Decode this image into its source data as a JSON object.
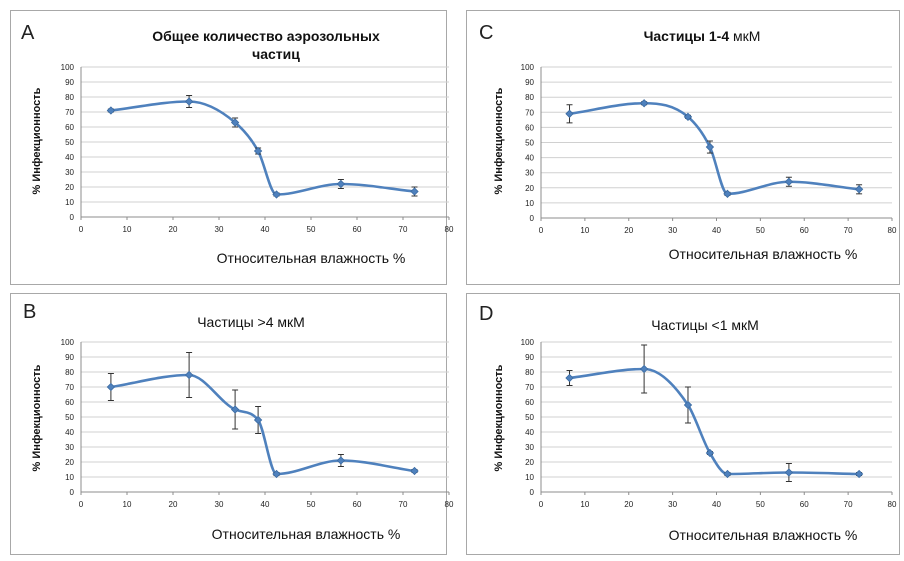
{
  "chart_data": [
    {
      "type": "line",
      "panel_letter": "A",
      "title": "Общее количество аэрозольных частиц",
      "xlabel": "Относительная влажность %",
      "ylabel": "% Инфекционность",
      "xlim": [
        0,
        80
      ],
      "ylim": [
        0,
        100
      ],
      "x_ticks": [
        0,
        10,
        20,
        30,
        40,
        50,
        60,
        70,
        80
      ],
      "y_ticks": [
        0,
        10,
        20,
        30,
        40,
        50,
        60,
        70,
        80,
        90,
        100
      ],
      "grid": true,
      "series": [
        {
          "x": [
            6.5,
            23.5,
            33.5,
            38.5,
            42.5,
            56.5,
            72.5
          ],
          "y": [
            71,
            77,
            63,
            44,
            15,
            22,
            17
          ],
          "err": [
            1,
            4,
            3,
            2,
            1,
            3,
            3
          ]
        }
      ]
    },
    {
      "type": "line",
      "panel_letter": "C",
      "title": "Частицы 1-4 мкМ",
      "xlabel": "Относительная влажность %",
      "ylabel": "% Инфекционность",
      "xlim": [
        0,
        80
      ],
      "ylim": [
        0,
        100
      ],
      "x_ticks": [
        0,
        10,
        20,
        30,
        40,
        50,
        60,
        70,
        80
      ],
      "y_ticks": [
        0,
        10,
        20,
        30,
        40,
        50,
        60,
        70,
        80,
        90,
        100
      ],
      "grid": true,
      "series": [
        {
          "x": [
            6.5,
            23.5,
            33.5,
            38.5,
            42.5,
            56.5,
            72.5
          ],
          "y": [
            69,
            76,
            67,
            47,
            16,
            24,
            19
          ],
          "err": [
            6,
            1,
            1,
            4,
            1,
            3,
            3
          ]
        }
      ]
    },
    {
      "type": "line",
      "panel_letter": "B",
      "title": "Частицы >4 мкМ",
      "xlabel": "Относительная влажность %",
      "ylabel": "% Инфекционность",
      "xlim": [
        0,
        80
      ],
      "ylim": [
        0,
        100
      ],
      "x_ticks": [
        0,
        10,
        20,
        30,
        40,
        50,
        60,
        70,
        80
      ],
      "y_ticks": [
        0,
        10,
        20,
        30,
        40,
        50,
        60,
        70,
        80,
        90,
        100
      ],
      "grid": true,
      "series": [
        {
          "x": [
            6.5,
            23.5,
            33.5,
            38.5,
            42.5,
            56.5,
            72.5
          ],
          "y": [
            70,
            78,
            55,
            48,
            12,
            21,
            14
          ],
          "err": [
            9,
            15,
            13,
            9,
            1,
            4,
            1
          ]
        }
      ]
    },
    {
      "type": "line",
      "panel_letter": "D",
      "title": "Частицы <1 мкМ",
      "xlabel": "Относительная влажность %",
      "ylabel": "% Инфекционность",
      "xlim": [
        0,
        80
      ],
      "ylim": [
        0,
        100
      ],
      "x_ticks": [
        0,
        10,
        20,
        30,
        40,
        50,
        60,
        70,
        80
      ],
      "y_ticks": [
        0,
        10,
        20,
        30,
        40,
        50,
        60,
        70,
        80,
        90,
        100
      ],
      "grid": true,
      "series": [
        {
          "x": [
            6.5,
            23.5,
            33.5,
            38.5,
            42.5,
            56.5,
            72.5
          ],
          "y": [
            76,
            82,
            58,
            26,
            12,
            13,
            12
          ],
          "err": [
            5,
            16,
            12,
            1,
            1,
            6,
            1
          ]
        }
      ]
    }
  ]
}
